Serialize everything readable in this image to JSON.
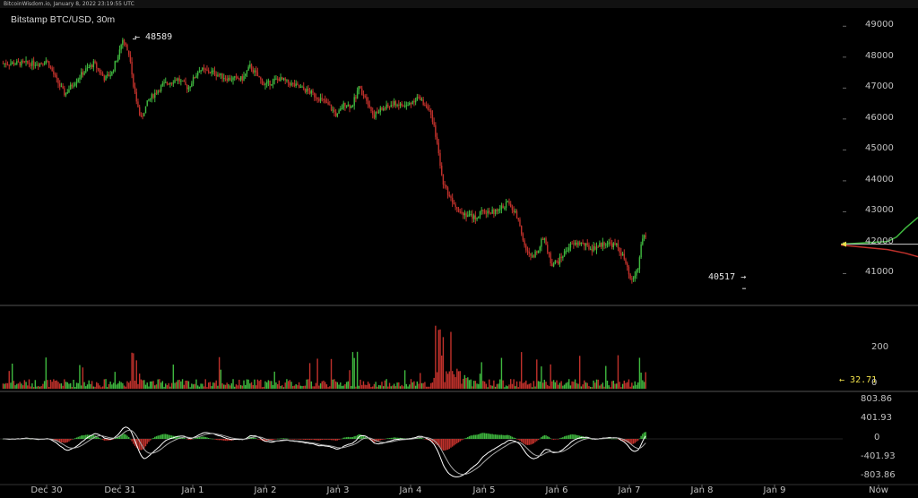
{
  "header": {
    "watermark": "BitcoinWisdom.io, January 8, 2022 23:19:55 UTC"
  },
  "chart_data": [
    {
      "type": "candlestick",
      "title": "Bitstamp BTC/USD, 30m",
      "ylim": [
        40000,
        49500
      ],
      "yticks": [
        "49000",
        "48000",
        "47000",
        "46000",
        "45000",
        "44000",
        "43000",
        "42000",
        "41000"
      ],
      "xticks": [
        "Dec 30",
        "Dec 31",
        "Jan 1",
        "Jan 2",
        "Jan 3",
        "Jan 4",
        "Jan 5",
        "Jan 6",
        "Jan 7",
        "Jan 8",
        "Jan 9",
        "Now"
      ],
      "annotations": {
        "high_label": "48589",
        "high_value": 48589,
        "low_label": "40517",
        "low_value": 40517
      },
      "price_path": [
        [
          29.9,
          47800
        ],
        [
          30.0,
          47900
        ],
        [
          30.15,
          47200
        ],
        [
          30.25,
          46800
        ],
        [
          30.35,
          47100
        ],
        [
          30.5,
          47500
        ],
        [
          30.65,
          47800
        ],
        [
          30.8,
          47300
        ],
        [
          30.9,
          47500
        ],
        [
          31.0,
          48200
        ],
        [
          31.05,
          48589
        ],
        [
          31.15,
          48000
        ],
        [
          31.2,
          47000
        ],
        [
          31.3,
          46000
        ],
        [
          31.4,
          46600
        ],
        [
          31.6,
          47100
        ],
        [
          31.8,
          47300
        ],
        [
          31.95,
          47000
        ],
        [
          32.1,
          47600
        ],
        [
          32.3,
          47500
        ],
        [
          32.5,
          47300
        ],
        [
          32.7,
          47300
        ],
        [
          32.8,
          47700
        ],
        [
          33.0,
          47100
        ],
        [
          33.2,
          47300
        ],
        [
          33.4,
          47100
        ],
        [
          33.6,
          46900
        ],
        [
          33.8,
          46600
        ],
        [
          33.9,
          46400
        ],
        [
          34.0,
          46100
        ],
        [
          34.1,
          46500
        ],
        [
          34.2,
          46400
        ],
        [
          34.3,
          47000
        ],
        [
          34.4,
          46700
        ],
        [
          34.5,
          46100
        ],
        [
          34.6,
          46300
        ],
        [
          34.8,
          46500
        ],
        [
          34.95,
          46400
        ],
        [
          35.1,
          46700
        ],
        [
          35.25,
          46400
        ],
        [
          35.35,
          45600
        ],
        [
          35.45,
          44000
        ],
        [
          35.55,
          43500
        ],
        [
          35.7,
          43000
        ],
        [
          35.9,
          42800
        ],
        [
          36.0,
          43000
        ],
        [
          36.2,
          43000
        ],
        [
          36.35,
          43300
        ],
        [
          36.5,
          42800
        ],
        [
          36.6,
          41700
        ],
        [
          36.7,
          41500
        ],
        [
          36.85,
          42200
        ],
        [
          36.95,
          41300
        ],
        [
          37.05,
          41400
        ],
        [
          37.2,
          41900
        ],
        [
          37.35,
          42000
        ],
        [
          37.5,
          41800
        ],
        [
          37.7,
          42000
        ],
        [
          37.85,
          41900
        ],
        [
          37.95,
          41500
        ],
        [
          38.05,
          40700
        ],
        [
          38.15,
          41200
        ],
        [
          38.2,
          42200
        ]
      ]
    },
    {
      "type": "bar",
      "yticks": [
        "200",
        "0"
      ],
      "current_label": "32.71"
    },
    {
      "type": "line",
      "yticks": [
        "803.86",
        "401.93",
        "0",
        "-401.93",
        "-803.86"
      ]
    }
  ]
}
